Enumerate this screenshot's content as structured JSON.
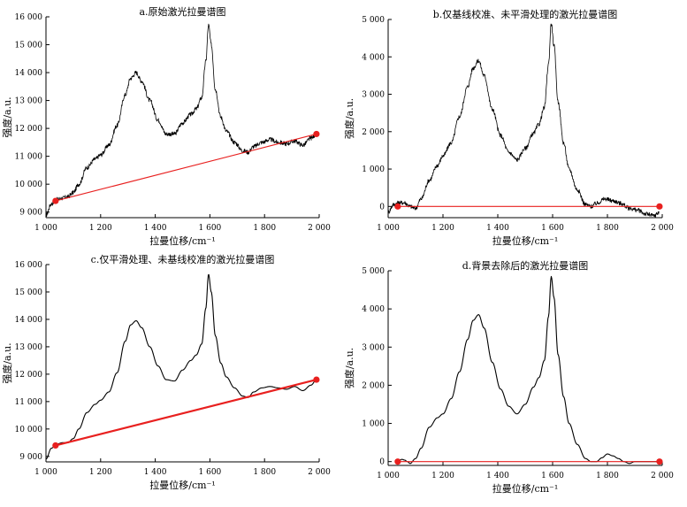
{
  "chart_data": [
    {
      "type": "line",
      "title": "a.原始激光拉曼谱图",
      "xlabel": "拉曼位移/cm⁻¹",
      "ylabel": "强度/a.u.",
      "xlim": [
        1000,
        2000
      ],
      "ylim": [
        8800,
        16000
      ],
      "xticks": [
        1000,
        1200,
        1400,
        1600,
        1800,
        2000
      ],
      "xtick_labels": [
        "1 000",
        "1 200",
        "1 400",
        "1 600",
        "1 800",
        "2 000"
      ],
      "yticks": [
        9000,
        10000,
        11000,
        12000,
        13000,
        14000,
        15000,
        16000
      ],
      "ytick_labels": [
        "9 000",
        "10 000",
        "11 000",
        "12 000",
        "13 000",
        "14 000",
        "15 000",
        "16 000"
      ],
      "noisy": true,
      "series": [
        {
          "color": "#000000",
          "x": [
            1000,
            1020,
            1040,
            1060,
            1080,
            1100,
            1120,
            1150,
            1180,
            1200,
            1230,
            1260,
            1290,
            1310,
            1330,
            1350,
            1380,
            1410,
            1440,
            1470,
            1500,
            1530,
            1550,
            1570,
            1585,
            1595,
            1605,
            1620,
            1640,
            1660,
            1690,
            1720,
            1740,
            1760,
            1790,
            1820,
            1850,
            1880,
            1910,
            1940,
            1970,
            1990
          ],
          "y": [
            8900,
            9300,
            9450,
            9500,
            9550,
            9700,
            10000,
            10600,
            10900,
            11050,
            11400,
            12100,
            13200,
            13800,
            14000,
            13700,
            13000,
            12300,
            11800,
            11800,
            12200,
            12500,
            12700,
            13100,
            14400,
            15700,
            15000,
            13400,
            12400,
            11900,
            11500,
            11200,
            11150,
            11350,
            11500,
            11600,
            11500,
            11450,
            11550,
            11400,
            11650,
            11800
          ]
        }
      ],
      "baseline": {
        "color": "#e8201f",
        "x": [
          1035,
          1990
        ],
        "y": [
          9400,
          11800
        ]
      }
    },
    {
      "type": "line",
      "title": "b.仅基线校准、未平滑处理的激光拉曼谱图",
      "xlabel": "拉曼位移/cm⁻¹",
      "ylabel": "强度/a.u.",
      "xlim": [
        1000,
        2000
      ],
      "ylim": [
        -300,
        5000
      ],
      "xticks": [
        1000,
        1200,
        1400,
        1600,
        1800,
        2000
      ],
      "xtick_labels": [
        "1 000",
        "1 200",
        "1 400",
        "1 600",
        "1 800",
        "2 000"
      ],
      "yticks": [
        0,
        1000,
        2000,
        3000,
        4000,
        5000
      ],
      "ytick_labels": [
        "0",
        "1 000",
        "2 000",
        "3 000",
        "4 000",
        "5 000"
      ],
      "noisy": true,
      "series": [
        {
          "color": "#000000",
          "x": [
            1000,
            1020,
            1040,
            1060,
            1080,
            1100,
            1120,
            1150,
            1180,
            1200,
            1230,
            1260,
            1290,
            1310,
            1330,
            1350,
            1380,
            1410,
            1440,
            1470,
            1500,
            1530,
            1550,
            1570,
            1585,
            1595,
            1605,
            1620,
            1640,
            1660,
            1690,
            1720,
            1740,
            1760,
            1790,
            1820,
            1850,
            1880,
            1910,
            1940,
            1970,
            1990
          ],
          "y": [
            -150,
            50,
            100,
            100,
            0,
            -50,
            200,
            700,
            1100,
            1350,
            1700,
            2400,
            3200,
            3700,
            3900,
            3500,
            2600,
            1900,
            1450,
            1250,
            1550,
            1950,
            2200,
            2650,
            3800,
            4900,
            4300,
            2800,
            1700,
            1000,
            450,
            50,
            0,
            80,
            200,
            150,
            80,
            -50,
            -100,
            -200,
            -250,
            -150
          ]
        }
      ],
      "baseline": {
        "color": "#e8201f",
        "x": [
          1035,
          1990
        ],
        "y": [
          0,
          0
        ]
      }
    },
    {
      "type": "line",
      "title": "c.仅平滑处理、未基线校准的激光拉曼谱图",
      "xlabel": "拉曼位移/cm⁻¹",
      "ylabel": "强度/a.u.",
      "xlim": [
        1000,
        2000
      ],
      "ylim": [
        8800,
        16000
      ],
      "xticks": [
        1000,
        1200,
        1400,
        1600,
        1800,
        2000
      ],
      "xtick_labels": [
        "1 000",
        "1 200",
        "1 400",
        "1 600",
        "1 800",
        "2 000"
      ],
      "yticks": [
        9000,
        10000,
        11000,
        12000,
        13000,
        14000,
        15000,
        16000
      ],
      "ytick_labels": [
        "9 000",
        "10 000",
        "11 000",
        "12 000",
        "13 000",
        "14 000",
        "15 000",
        "16 000"
      ],
      "noisy": false,
      "series": [
        {
          "color": "#000000",
          "x": [
            1000,
            1020,
            1040,
            1060,
            1080,
            1100,
            1120,
            1150,
            1180,
            1200,
            1230,
            1260,
            1290,
            1310,
            1330,
            1350,
            1380,
            1410,
            1440,
            1470,
            1500,
            1530,
            1550,
            1570,
            1585,
            1595,
            1605,
            1620,
            1640,
            1660,
            1690,
            1720,
            1740,
            1760,
            1790,
            1820,
            1850,
            1880,
            1910,
            1940,
            1970,
            1990
          ],
          "y": [
            8900,
            9300,
            9450,
            9500,
            9500,
            9650,
            10000,
            10600,
            10900,
            11050,
            11350,
            12050,
            13200,
            13800,
            13950,
            13700,
            13000,
            12300,
            11800,
            11750,
            12150,
            12500,
            12700,
            13100,
            14400,
            15650,
            15000,
            13400,
            12400,
            11900,
            11500,
            11200,
            11150,
            11350,
            11500,
            11550,
            11500,
            11450,
            11550,
            11400,
            11600,
            11800
          ]
        }
      ],
      "baseline": {
        "color": "#e8201f",
        "x": [
          1035,
          1990
        ],
        "y": [
          9400,
          11800
        ]
      }
    },
    {
      "type": "line",
      "title": "d.背景去除后的激光拉曼谱图",
      "xlabel": "拉曼位移/cm⁻¹",
      "ylabel": "强度/a.u.",
      "xlim": [
        1000,
        2000
      ],
      "ylim": [
        -100,
        5000
      ],
      "xticks": [
        1000,
        1200,
        1400,
        1600,
        1800,
        2000
      ],
      "xtick_labels": [
        "1 000",
        "1 200",
        "1 400",
        "1 600",
        "1 800",
        "2 000"
      ],
      "yticks": [
        0,
        1000,
        2000,
        3000,
        4000,
        5000
      ],
      "ytick_labels": [
        "0",
        "1 000",
        "2 000",
        "3 000",
        "4 000",
        "5 000"
      ],
      "noisy": false,
      "series": [
        {
          "color": "#000000",
          "x": [
            1035,
            1050,
            1060,
            1070,
            1080,
            1100,
            1120,
            1150,
            1180,
            1200,
            1230,
            1260,
            1290,
            1310,
            1330,
            1350,
            1380,
            1410,
            1440,
            1470,
            1500,
            1530,
            1550,
            1570,
            1585,
            1595,
            1605,
            1620,
            1640,
            1660,
            1690,
            1720,
            1740,
            1760,
            1780,
            1800,
            1820,
            1840,
            1860,
            1880,
            1900,
            1920,
            1990
          ],
          "y": [
            0,
            60,
            40,
            0,
            -50,
            80,
            350,
            900,
            1150,
            1250,
            1650,
            2350,
            3200,
            3700,
            3850,
            3500,
            2600,
            1900,
            1450,
            1250,
            1500,
            1950,
            2200,
            2650,
            3800,
            4850,
            4300,
            2800,
            1700,
            1000,
            450,
            80,
            0,
            0,
            100,
            200,
            150,
            80,
            0,
            -50,
            0,
            0,
            0
          ]
        }
      ],
      "baseline": {
        "color": "#e8201f",
        "x": [
          1035,
          1990
        ],
        "y": [
          0,
          0
        ]
      }
    }
  ]
}
